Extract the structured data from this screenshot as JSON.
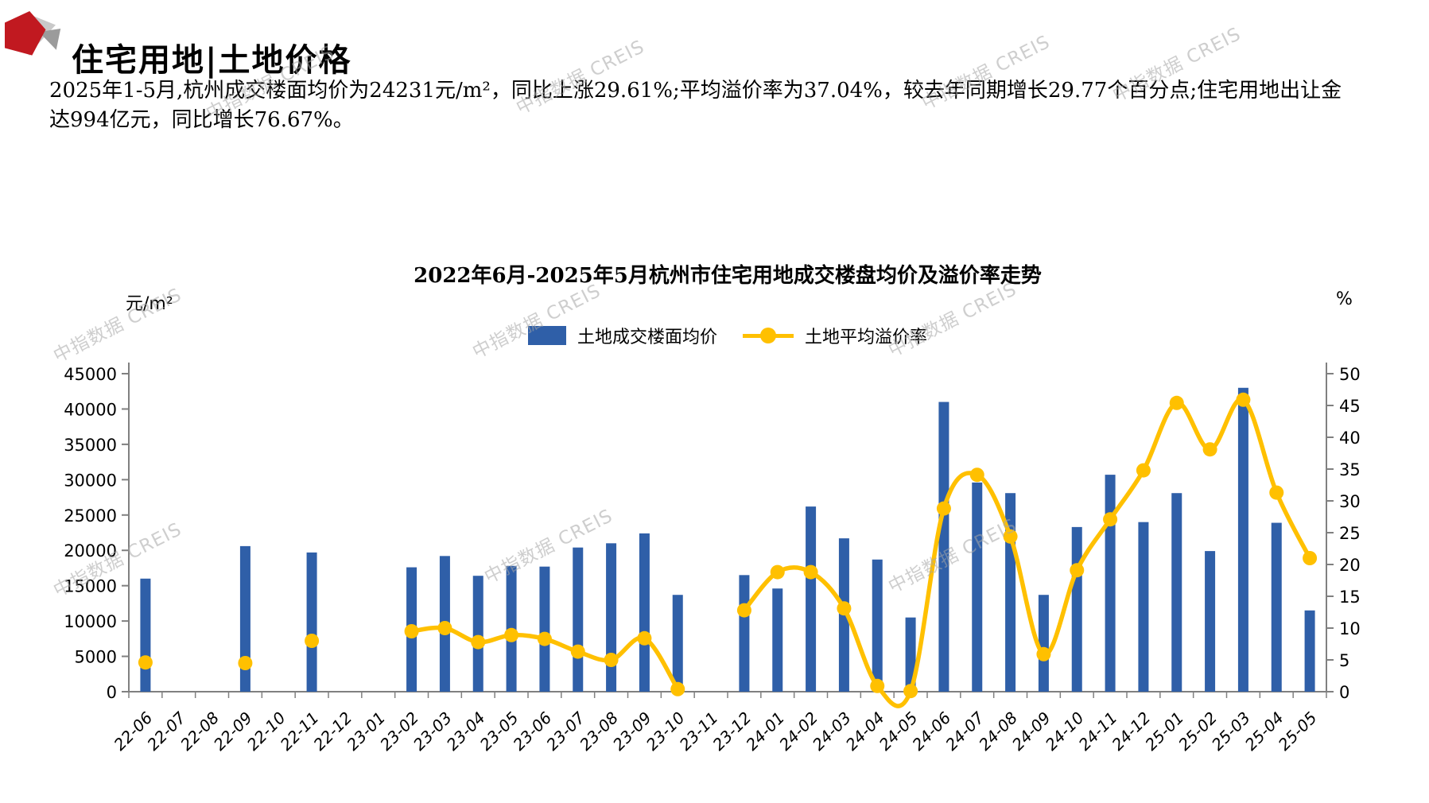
{
  "page": {
    "title": "住宅用地|土地价格"
  },
  "summary": {
    "line1": "2025年1-5月,杭州成交楼面均价为24231元/m²，同比上涨29.61%;平均溢价率为37.04%，较去年同期增长29.77个百分点;住宅用地出让金",
    "line2": "达994亿元，同比增长76.67%。"
  },
  "watermark": "中指数据 CREIS",
  "colors": {
    "bar": "#2F5FA8",
    "line": "#FFC000",
    "axis": "#808080",
    "logo_red": "#C11920",
    "text": "#000000"
  },
  "chart_data": {
    "type": "bar",
    "subtype": "bar+line dual axis",
    "title": "2022年6月-2025年5月杭州市住宅用地成交楼盘均价及溢价率走势",
    "left_axis": {
      "unit": "元/m²",
      "min": 0,
      "max": 45000,
      "step": 5000
    },
    "right_axis": {
      "unit": "%",
      "min": 0,
      "max": 50,
      "step": 5
    },
    "grid": false,
    "legend_position": "top-center",
    "legend": [
      {
        "label": "土地成交楼面均价",
        "type": "bar",
        "color": "#2F5FA8"
      },
      {
        "label": "土地平均溢价率",
        "type": "line",
        "color": "#FFC000"
      }
    ],
    "categories": [
      "22-06",
      "22-07",
      "22-08",
      "22-09",
      "22-10",
      "22-11",
      "22-12",
      "23-01",
      "23-02",
      "23-03",
      "23-04",
      "23-05",
      "23-06",
      "23-07",
      "23-08",
      "23-09",
      "23-10",
      "23-11",
      "23-12",
      "24-01",
      "24-02",
      "24-03",
      "24-04",
      "24-05",
      "24-06",
      "24-07",
      "24-08",
      "24-09",
      "24-10",
      "24-11",
      "24-12",
      "25-01",
      "25-02",
      "25-03",
      "25-04",
      "25-05"
    ],
    "series": [
      {
        "name": "土地成交楼面均价",
        "type": "bar",
        "axis": "left",
        "values": [
          16000,
          null,
          null,
          20600,
          null,
          19700,
          null,
          null,
          17600,
          19200,
          16400,
          17800,
          17700,
          20400,
          21000,
          22400,
          13700,
          null,
          16500,
          14600,
          26200,
          21700,
          18700,
          10500,
          41000,
          29600,
          28100,
          13700,
          23300,
          30700,
          24000,
          28100,
          19900,
          43000,
          23900,
          11500
        ]
      },
      {
        "name": "土地平均溢价率",
        "type": "line",
        "axis": "right",
        "values": [
          4.6,
          null,
          null,
          4.5,
          null,
          8.0,
          null,
          null,
          9.5,
          10.0,
          7.8,
          8.9,
          8.3,
          6.3,
          5.0,
          8.4,
          0.4,
          null,
          12.8,
          18.8,
          18.8,
          13.1,
          0.9,
          0.1,
          28.8,
          34.1,
          24.4,
          5.9,
          19.1,
          27.1,
          34.8,
          45.4,
          38.1,
          45.9,
          31.3,
          21.0
        ]
      }
    ]
  }
}
